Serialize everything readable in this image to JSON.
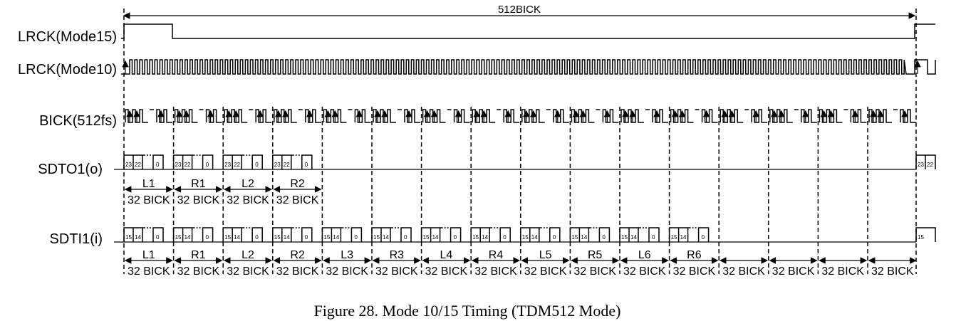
{
  "title": "512BICK",
  "signals": {
    "lrck15": "LRCK(Mode15)",
    "lrck10": "LRCK(Mode10)",
    "bick": "BICK(512fs)",
    "sdto": "SDTO1(o)",
    "sdti": "SDTI1(i)"
  },
  "sdto_slots": [
    "L1",
    "R1",
    "L2",
    "R2"
  ],
  "sdti_slots": [
    "L1",
    "R1",
    "L2",
    "R2",
    "L3",
    "R3",
    "L4",
    "R4",
    "L5",
    "R5",
    "L6",
    "R6",
    "",
    "",
    "",
    ""
  ],
  "slot_width_label": "32 BICK",
  "sdto_bits": [
    "23",
    "22",
    "0"
  ],
  "sdti_bits": [
    "15",
    "14",
    "0"
  ],
  "caption": "Figure 28. Mode 10/15 Timing (TDM512 Mode)"
}
